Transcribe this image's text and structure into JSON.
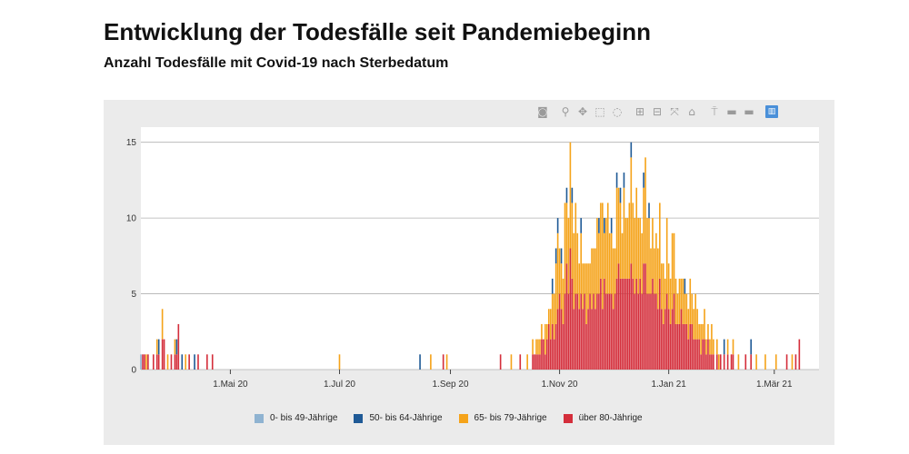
{
  "header": {
    "title": "Entwicklung der Todesfälle seit Pandemiebeginn",
    "subtitle": "Anzahl Todesfälle mit Covid-19 nach Sterbedatum"
  },
  "modebar": {
    "icons": [
      "camera-icon",
      "zoom-icon",
      "pan-icon",
      "box-select-icon",
      "lasso-icon",
      "zoom-in-icon",
      "zoom-out-icon",
      "autoscale-icon",
      "reset-axes-icon",
      "spike-lines-icon",
      "hover-closest-icon",
      "hover-compare-icon",
      "plotly-logo-icon"
    ],
    "glyphs": [
      "◙",
      "⚲",
      "✥",
      "⬚",
      "◌",
      "⊞",
      "⊟",
      "⤧",
      "⌂",
      "⍑",
      "▬",
      "▬",
      "▥"
    ]
  },
  "colors": {
    "c0_49": "#8fb3d1",
    "c50_64": "#1f5a96",
    "c65_79": "#f5a31a",
    "c80": "#d42e3b",
    "grid": "#b0b0b0",
    "plot_bg": "#ffffff",
    "panel_bg": "#ebebeb"
  },
  "chart_data": {
    "type": "bar",
    "stacked": true,
    "title": "Entwicklung der Todesfälle seit Pandemiebeginn",
    "subtitle": "Anzahl Todesfälle mit Covid-19 nach Sterbedatum",
    "xlabel": "",
    "ylabel": "",
    "x_range": [
      "2020-03-12",
      "2021-03-26"
    ],
    "ylim": [
      0,
      16
    ],
    "yticks": [
      0,
      5,
      10,
      15
    ],
    "xticks": [
      {
        "date": "2020-05-01",
        "label": "1.Mai 20"
      },
      {
        "date": "2020-07-01",
        "label": "1.Jul 20"
      },
      {
        "date": "2020-09-01",
        "label": "1.Sep 20"
      },
      {
        "date": "2020-11-01",
        "label": "1.Nov 20"
      },
      {
        "date": "2021-01-01",
        "label": "1.Jan 21"
      },
      {
        "date": "2021-03-01",
        "label": "1.Mär 21"
      }
    ],
    "grid": true,
    "legend_position": "bottom",
    "series": [
      {
        "name": "0- bis 49-Jährige",
        "color": "#8fb3d1"
      },
      {
        "name": "50- bis 64-Jährige",
        "color": "#1f5a96"
      },
      {
        "name": "65- bis 79-Jährige",
        "color": "#f5a31a"
      },
      {
        "name": "über 80-Jährige",
        "color": "#d42e3b"
      }
    ],
    "bar_columns": [
      "date",
      "0- bis 49-Jährige",
      "50- bis 64-Jährige",
      "65- bis 79-Jährige",
      "über 80-Jährige"
    ],
    "bars": [
      [
        "2020-03-12",
        1,
        0,
        0,
        0
      ],
      [
        "2020-03-13",
        0,
        0,
        0,
        1
      ],
      [
        "2020-03-14",
        0,
        0,
        0,
        1
      ],
      [
        "2020-03-15",
        0,
        0,
        1,
        0
      ],
      [
        "2020-03-16",
        0,
        0,
        0,
        1
      ],
      [
        "2020-03-19",
        0,
        0,
        0,
        1
      ],
      [
        "2020-03-21",
        0,
        0,
        1,
        1
      ],
      [
        "2020-03-22",
        0,
        1,
        0,
        1
      ],
      [
        "2020-03-24",
        0,
        0,
        2,
        2
      ],
      [
        "2020-03-25",
        0,
        0,
        0,
        2
      ],
      [
        "2020-03-27",
        0,
        0,
        1,
        0
      ],
      [
        "2020-03-29",
        0,
        0,
        0,
        1
      ],
      [
        "2020-03-31",
        0,
        0,
        1,
        1
      ],
      [
        "2020-04-01",
        0,
        1,
        0,
        1
      ],
      [
        "2020-04-02",
        0,
        0,
        0,
        3
      ],
      [
        "2020-04-04",
        0,
        1,
        0,
        0
      ],
      [
        "2020-04-06",
        0,
        0,
        1,
        0
      ],
      [
        "2020-04-08",
        0,
        0,
        0,
        1
      ],
      [
        "2020-04-11",
        0,
        1,
        0,
        0
      ],
      [
        "2020-04-13",
        0,
        0,
        0,
        1
      ],
      [
        "2020-04-18",
        0,
        0,
        0,
        1
      ],
      [
        "2020-04-21",
        0,
        0,
        0,
        1
      ],
      [
        "2020-07-01",
        0,
        0,
        1,
        0
      ],
      [
        "2020-08-15",
        0,
        1,
        0,
        0
      ],
      [
        "2020-08-21",
        0,
        0,
        1,
        0
      ],
      [
        "2020-08-28",
        0,
        0,
        0,
        1
      ],
      [
        "2020-08-30",
        0,
        0,
        1,
        0
      ],
      [
        "2020-09-29",
        0,
        0,
        0,
        1
      ],
      [
        "2020-10-05",
        0,
        0,
        1,
        0
      ],
      [
        "2020-10-10",
        0,
        0,
        0,
        1
      ],
      [
        "2020-10-14",
        0,
        0,
        1,
        0
      ],
      [
        "2020-10-17",
        0,
        0,
        1,
        1
      ],
      [
        "2020-10-18",
        0,
        0,
        0,
        1
      ],
      [
        "2020-10-19",
        0,
        0,
        1,
        1
      ],
      [
        "2020-10-20",
        0,
        0,
        1,
        1
      ],
      [
        "2020-10-21",
        0,
        0,
        1,
        1
      ],
      [
        "2020-10-22",
        0,
        0,
        1,
        2
      ],
      [
        "2020-10-23",
        0,
        0,
        0,
        2
      ],
      [
        "2020-10-24",
        0,
        0,
        2,
        1
      ],
      [
        "2020-10-25",
        0,
        0,
        1,
        2
      ],
      [
        "2020-10-26",
        0,
        0,
        1,
        3
      ],
      [
        "2020-10-27",
        0,
        0,
        2,
        2
      ],
      [
        "2020-10-28",
        0,
        1,
        2,
        3
      ],
      [
        "2020-10-29",
        0,
        0,
        3,
        2
      ],
      [
        "2020-10-30",
        0,
        1,
        4,
        3
      ],
      [
        "2020-10-31",
        0,
        1,
        5,
        4
      ],
      [
        "2020-11-01",
        0,
        0,
        3,
        5
      ],
      [
        "2020-11-02",
        0,
        1,
        3,
        4
      ],
      [
        "2020-11-03",
        0,
        0,
        3,
        3
      ],
      [
        "2020-11-04",
        0,
        0,
        6,
        5
      ],
      [
        "2020-11-05",
        0,
        1,
        4,
        7
      ],
      [
        "2020-11-06",
        0,
        0,
        5,
        5
      ],
      [
        "2020-11-07",
        0,
        0,
        7,
        8
      ],
      [
        "2020-11-08",
        0,
        1,
        5,
        6
      ],
      [
        "2020-11-09",
        0,
        0,
        5,
        4
      ],
      [
        "2020-11-10",
        0,
        0,
        6,
        5
      ],
      [
        "2020-11-11",
        0,
        0,
        4,
        5
      ],
      [
        "2020-11-12",
        0,
        0,
        3,
        4
      ],
      [
        "2020-11-13",
        0,
        1,
        4,
        5
      ],
      [
        "2020-11-14",
        0,
        0,
        3,
        4
      ],
      [
        "2020-11-15",
        0,
        0,
        2,
        5
      ],
      [
        "2020-11-16",
        0,
        0,
        4,
        3
      ],
      [
        "2020-11-17",
        0,
        0,
        3,
        4
      ],
      [
        "2020-11-18",
        0,
        0,
        2,
        5
      ],
      [
        "2020-11-19",
        0,
        0,
        4,
        4
      ],
      [
        "2020-11-20",
        0,
        0,
        3,
        5
      ],
      [
        "2020-11-21",
        0,
        0,
        4,
        4
      ],
      [
        "2020-11-22",
        0,
        0,
        5,
        5
      ],
      [
        "2020-11-23",
        0,
        1,
        4,
        5
      ],
      [
        "2020-11-24",
        0,
        0,
        5,
        6
      ],
      [
        "2020-11-25",
        0,
        0,
        7,
        4
      ],
      [
        "2020-11-26",
        0,
        1,
        3,
        6
      ],
      [
        "2020-11-27",
        0,
        0,
        5,
        5
      ],
      [
        "2020-11-28",
        0,
        0,
        6,
        5
      ],
      [
        "2020-11-29",
        0,
        0,
        4,
        5
      ],
      [
        "2020-11-30",
        0,
        1,
        4,
        5
      ],
      [
        "2020-12-01",
        0,
        0,
        4,
        4
      ],
      [
        "2020-12-02",
        0,
        0,
        3,
        5
      ],
      [
        "2020-12-03",
        0,
        1,
        6,
        6
      ],
      [
        "2020-12-04",
        0,
        0,
        5,
        7
      ],
      [
        "2020-12-05",
        0,
        1,
        5,
        6
      ],
      [
        "2020-12-06",
        0,
        0,
        3,
        6
      ],
      [
        "2020-12-07",
        0,
        1,
        6,
        6
      ],
      [
        "2020-12-08",
        0,
        0,
        4,
        6
      ],
      [
        "2020-12-09",
        0,
        0,
        4,
        6
      ],
      [
        "2020-12-10",
        0,
        0,
        5,
        6
      ],
      [
        "2020-12-11",
        0,
        1,
        7,
        7
      ],
      [
        "2020-12-12",
        0,
        0,
        5,
        6
      ],
      [
        "2020-12-13",
        0,
        0,
        5,
        5
      ],
      [
        "2020-12-14",
        0,
        0,
        6,
        6
      ],
      [
        "2020-12-15",
        0,
        0,
        5,
        5
      ],
      [
        "2020-12-16",
        0,
        0,
        4,
        6
      ],
      [
        "2020-12-17",
        0,
        0,
        4,
        5
      ],
      [
        "2020-12-18",
        0,
        1,
        5,
        7
      ],
      [
        "2020-12-19",
        0,
        0,
        7,
        7
      ],
      [
        "2020-12-20",
        0,
        0,
        5,
        5
      ],
      [
        "2020-12-21",
        0,
        1,
        5,
        5
      ],
      [
        "2020-12-22",
        0,
        0,
        3,
        5
      ],
      [
        "2020-12-23",
        0,
        0,
        4,
        6
      ],
      [
        "2020-12-24",
        0,
        0,
        3,
        5
      ],
      [
        "2020-12-25",
        0,
        0,
        4,
        5
      ],
      [
        "2020-12-26",
        0,
        0,
        4,
        4
      ],
      [
        "2020-12-27",
        0,
        0,
        5,
        6
      ],
      [
        "2020-12-28",
        0,
        0,
        3,
        4
      ],
      [
        "2020-12-29",
        0,
        0,
        4,
        3
      ],
      [
        "2020-12-30",
        0,
        0,
        2,
        4
      ],
      [
        "2020-12-31",
        0,
        0,
        5,
        5
      ],
      [
        "2021-01-01",
        0,
        0,
        3,
        4
      ],
      [
        "2021-01-02",
        0,
        0,
        3,
        3
      ],
      [
        "2021-01-03",
        0,
        0,
        5,
        4
      ],
      [
        "2021-01-04",
        0,
        0,
        4,
        5
      ],
      [
        "2021-01-05",
        0,
        0,
        3,
        3
      ],
      [
        "2021-01-06",
        0,
        0,
        2,
        3
      ],
      [
        "2021-01-07",
        0,
        0,
        3,
        3
      ],
      [
        "2021-01-08",
        0,
        0,
        2,
        4
      ],
      [
        "2021-01-09",
        0,
        0,
        3,
        3
      ],
      [
        "2021-01-10",
        0,
        1,
        2,
        3
      ],
      [
        "2021-01-11",
        0,
        0,
        2,
        3
      ],
      [
        "2021-01-12",
        0,
        0,
        2,
        2
      ],
      [
        "2021-01-13",
        0,
        0,
        3,
        3
      ],
      [
        "2021-01-14",
        0,
        0,
        2,
        3
      ],
      [
        "2021-01-15",
        0,
        0,
        2,
        2
      ],
      [
        "2021-01-16",
        0,
        0,
        3,
        2
      ],
      [
        "2021-01-17",
        0,
        0,
        2,
        2
      ],
      [
        "2021-01-18",
        0,
        0,
        1,
        2
      ],
      [
        "2021-01-19",
        0,
        0,
        2,
        1
      ],
      [
        "2021-01-20",
        0,
        0,
        1,
        2
      ],
      [
        "2021-01-21",
        0,
        0,
        2,
        2
      ],
      [
        "2021-01-22",
        0,
        0,
        1,
        1
      ],
      [
        "2021-01-23",
        0,
        0,
        1,
        2
      ],
      [
        "2021-01-24",
        0,
        0,
        1,
        1
      ],
      [
        "2021-01-25",
        0,
        0,
        2,
        1
      ],
      [
        "2021-01-26",
        0,
        0,
        1,
        1
      ],
      [
        "2021-01-28",
        0,
        0,
        1,
        1
      ],
      [
        "2021-01-29",
        0,
        0,
        1,
        0
      ],
      [
        "2021-01-30",
        0,
        0,
        0,
        1
      ],
      [
        "2021-02-01",
        0,
        1,
        0,
        1
      ],
      [
        "2021-02-03",
        0,
        0,
        1,
        1
      ],
      [
        "2021-02-05",
        0,
        0,
        0,
        1
      ],
      [
        "2021-02-06",
        0,
        0,
        1,
        1
      ],
      [
        "2021-02-09",
        0,
        0,
        1,
        0
      ],
      [
        "2021-02-13",
        0,
        0,
        0,
        1
      ],
      [
        "2021-02-16",
        0,
        1,
        0,
        1
      ],
      [
        "2021-02-19",
        0,
        0,
        1,
        0
      ],
      [
        "2021-02-24",
        0,
        0,
        1,
        0
      ],
      [
        "2021-03-02",
        0,
        0,
        1,
        0
      ],
      [
        "2021-03-08",
        0,
        0,
        0,
        1
      ],
      [
        "2021-03-11",
        0,
        0,
        1,
        0
      ],
      [
        "2021-03-13",
        0,
        0,
        0,
        1
      ],
      [
        "2021-03-15",
        0,
        0,
        0,
        2
      ]
    ]
  }
}
